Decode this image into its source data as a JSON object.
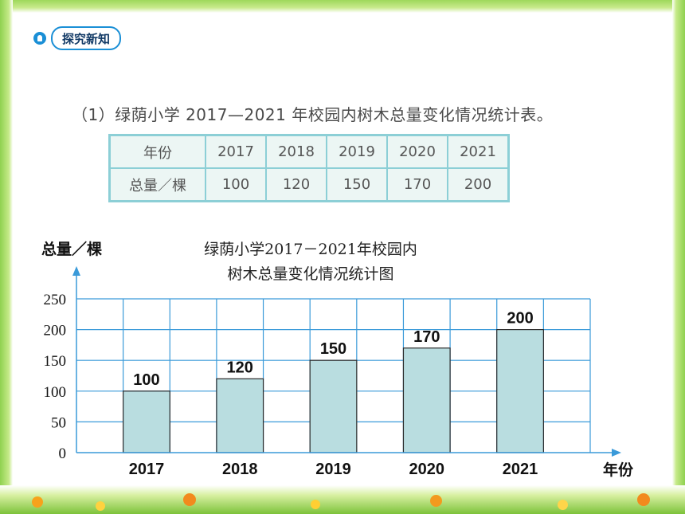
{
  "badge": {
    "label": "探究新知"
  },
  "question": {
    "title": "（1）绿荫小学 2017—2021 年校园内树木总量变化情况统计表。"
  },
  "table": {
    "row_headers": [
      "年份",
      "总量／棵"
    ],
    "years": [
      "2017",
      "2018",
      "2019",
      "2020",
      "2021"
    ],
    "totals": [
      "100",
      "120",
      "150",
      "170",
      "200"
    ]
  },
  "chart_data": {
    "type": "bar",
    "title_lines": [
      "绿荫小学2017－2021年校园内",
      "树木总量变化情况统计图"
    ],
    "ylabel": "总量／棵",
    "xlabel": "年份",
    "categories": [
      "2017",
      "2018",
      "2019",
      "2020",
      "2021"
    ],
    "values": [
      100,
      120,
      150,
      170,
      200
    ],
    "ylim": [
      0,
      250
    ],
    "yticks": [
      0,
      50,
      100,
      150,
      200,
      250
    ],
    "grid": true,
    "bar_color": "#b9dde0",
    "grid_color": "#3a9ad9",
    "bar_border_color": "#2b2b2b"
  }
}
